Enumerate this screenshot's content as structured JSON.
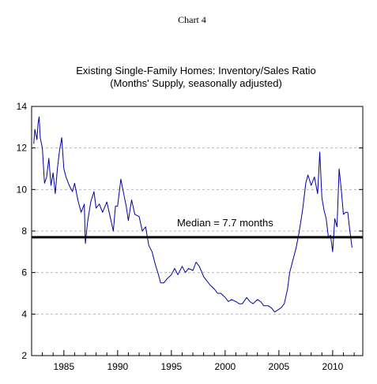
{
  "header": {
    "label": "Chart 4"
  },
  "chart_data": {
    "type": "line",
    "title": "Existing Single-Family Homes:  Inventory/Sales Ratio",
    "subtitle": "(Months' Supply, seasonally adjusted)",
    "xlabel": "",
    "ylabel": "",
    "xlim": [
      1982.0,
      2012.8
    ],
    "ylim": [
      2,
      14
    ],
    "y_ticks": [
      2,
      4,
      6,
      8,
      10,
      12,
      14
    ],
    "x_ticks": [
      1985,
      1990,
      1995,
      2000,
      2005,
      2010
    ],
    "y_tick_labels": [
      "2",
      "4",
      "6",
      "8",
      "10",
      "12",
      "14"
    ],
    "x_tick_labels": [
      "1985",
      "1990",
      "1995",
      "2000",
      "2005",
      "2010"
    ],
    "grid": true,
    "colors": {
      "series": "#0000a0",
      "median": "#000000",
      "grid": "#b8b8b8"
    },
    "median": {
      "value": 7.7,
      "label": "Median = 7.7 months"
    },
    "series": [
      {
        "x": [
          1982.2,
          1982.3,
          1982.5,
          1982.6,
          1982.7,
          1982.8,
          1983.0,
          1983.2,
          1983.4,
          1983.6,
          1983.8,
          1984.0,
          1984.2,
          1984.4,
          1984.6,
          1984.8,
          1985.0,
          1985.2,
          1985.5,
          1985.8,
          1986.0,
          1986.3,
          1986.6,
          1986.9,
          1987.0,
          1987.2,
          1987.5,
          1987.8,
          1988.0,
          1988.3,
          1988.6,
          1989.0,
          1989.3,
          1989.6,
          1989.8,
          1990.0,
          1990.3,
          1990.6,
          1990.8,
          1991.0,
          1991.3,
          1991.6,
          1992.0,
          1992.3,
          1992.6,
          1992.9,
          1993.2,
          1993.5,
          1993.8,
          1994.0,
          1994.3,
          1994.6,
          1995.0,
          1995.3,
          1995.6,
          1996.0,
          1996.3,
          1996.6,
          1997.0,
          1997.3,
          1997.6,
          1998.0,
          1998.3,
          1998.6,
          1999.0,
          1999.3,
          1999.6,
          2000.0,
          2000.3,
          2000.6,
          2001.0,
          2001.3,
          2001.6,
          2002.0,
          2002.3,
          2002.6,
          2003.0,
          2003.3,
          2003.6,
          2004.0,
          2004.3,
          2004.6,
          2004.9,
          2005.2,
          2005.5,
          2005.8,
          2006.0,
          2006.3,
          2006.6,
          2006.9,
          2007.2,
          2007.5,
          2007.7,
          2008.0,
          2008.3,
          2008.6,
          2008.8,
          2009.0,
          2009.2,
          2009.4,
          2009.6,
          2009.8,
          2010.0,
          2010.2,
          2010.4,
          2010.6,
          2010.8,
          2011.0,
          2011.2,
          2011.4,
          2011.6,
          2011.8
        ],
        "values": [
          12.2,
          12.9,
          12.4,
          13.2,
          13.5,
          12.5,
          12.0,
          10.3,
          10.6,
          11.5,
          10.2,
          10.8,
          9.8,
          11.0,
          11.9,
          12.5,
          11.0,
          10.6,
          10.2,
          9.9,
          10.3,
          9.5,
          8.9,
          9.3,
          7.4,
          8.4,
          9.4,
          9.9,
          9.1,
          9.3,
          8.9,
          9.4,
          8.7,
          8.0,
          9.2,
          9.2,
          10.5,
          9.7,
          9.2,
          8.5,
          9.5,
          8.8,
          8.7,
          8.0,
          8.2,
          7.3,
          7.0,
          6.4,
          5.9,
          5.5,
          5.5,
          5.7,
          5.9,
          6.2,
          5.9,
          6.3,
          6.0,
          6.2,
          6.1,
          6.5,
          6.3,
          5.8,
          5.6,
          5.4,
          5.2,
          5.0,
          5.0,
          4.8,
          4.6,
          4.7,
          4.6,
          4.5,
          4.5,
          4.8,
          4.6,
          4.5,
          4.7,
          4.6,
          4.4,
          4.4,
          4.3,
          4.1,
          4.2,
          4.3,
          4.5,
          5.2,
          6.0,
          6.6,
          7.2,
          8.0,
          9.0,
          10.3,
          10.7,
          10.2,
          10.6,
          9.8,
          11.8,
          9.6,
          9.0,
          8.6,
          7.7,
          7.8,
          7.0,
          8.6,
          8.2,
          11.0,
          10.0,
          8.8,
          8.9,
          8.9,
          8.0,
          7.2
        ]
      }
    ]
  }
}
